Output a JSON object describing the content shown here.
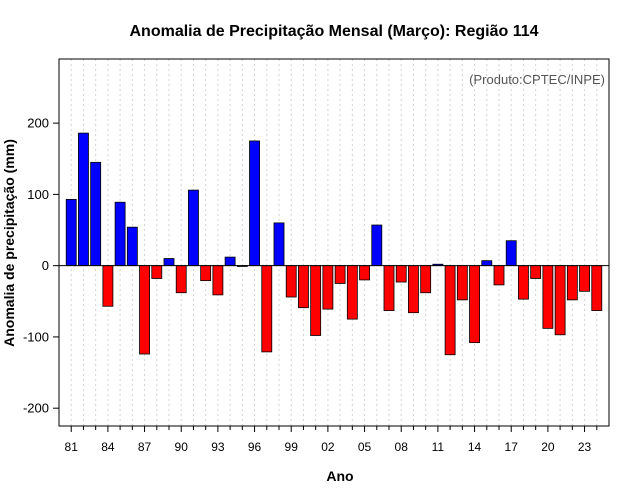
{
  "chart_data": {
    "type": "bar",
    "title": "Anomalia de Precipitação Mensal (Março): Região 114",
    "xlabel": "Ano",
    "ylabel": "Anomalia de precipitação (mm)",
    "annotation": "(Produto:CPTEC/INPE)",
    "ylim": [
      -225,
      290
    ],
    "yticks": [
      -200,
      -100,
      0,
      100,
      200
    ],
    "xtick_labels": [
      "81",
      "84",
      "87",
      "90",
      "93",
      "96",
      "99",
      "02",
      "05",
      "08",
      "11",
      "14",
      "17",
      "20",
      "23"
    ],
    "positive_color": "#0000ff",
    "negative_color": "#ff0000",
    "grid": true,
    "categories": [
      "1981",
      "1982",
      "1983",
      "1984",
      "1985",
      "1986",
      "1987",
      "1988",
      "1989",
      "1990",
      "1991",
      "1992",
      "1993",
      "1994",
      "1995",
      "1996",
      "1997",
      "1998",
      "1999",
      "2000",
      "2001",
      "2002",
      "2003",
      "2004",
      "2005",
      "2006",
      "2007",
      "2008",
      "2009",
      "2010",
      "2011",
      "2012",
      "2013",
      "2014",
      "2015",
      "2016",
      "2017",
      "2018",
      "2019",
      "2020",
      "2021",
      "2022",
      "2023",
      "2024"
    ],
    "values": [
      93,
      186,
      145,
      -57,
      89,
      54,
      -124,
      -18,
      10,
      -38,
      106,
      -21,
      -41,
      12,
      0,
      175,
      -121,
      60,
      -44,
      -59,
      -98,
      -61,
      -25,
      -75,
      -20,
      57,
      -63,
      -23,
      -66,
      -38,
      2,
      -125,
      -48,
      -108,
      7,
      -27,
      35,
      -47,
      -18,
      -88,
      -97,
      -48,
      -36,
      -63
    ]
  }
}
